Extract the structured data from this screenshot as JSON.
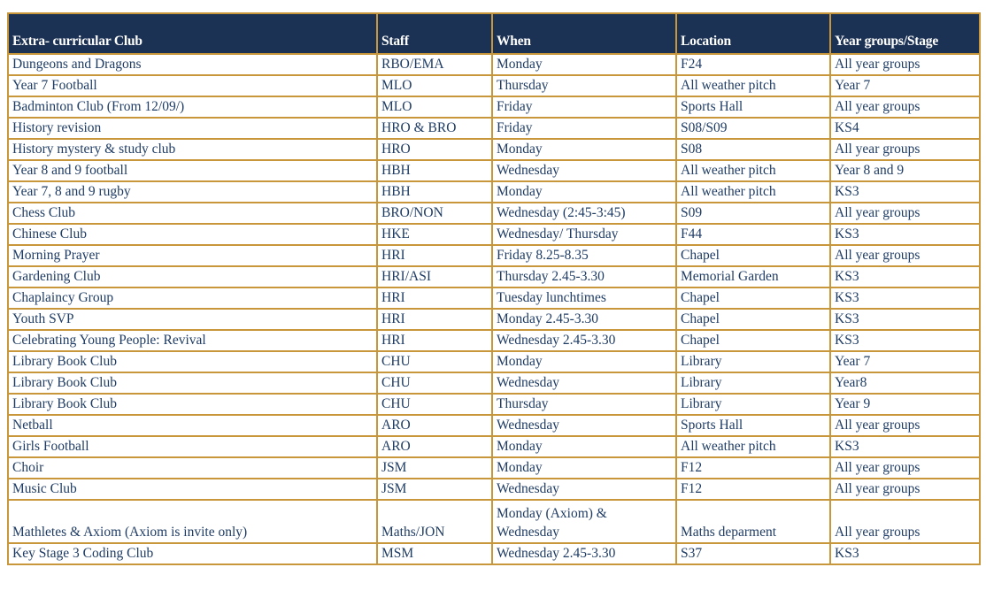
{
  "colors": {
    "page_background": "#ffffff",
    "header_background": "#1c3254",
    "header_text": "#ffffff",
    "body_text": "#1f3c64",
    "grid_border": "#c9973b"
  },
  "table": {
    "headers": [
      "Extra- curricular Club",
      "Staff",
      "When",
      "Location",
      "Year groups/Stage"
    ],
    "rows": [
      [
        "Dungeons and Dragons",
        "RBO/EMA",
        "Monday",
        "F24",
        "All year groups"
      ],
      [
        "Year 7 Football",
        "MLO",
        "Thursday",
        "All weather pitch",
        "Year 7"
      ],
      [
        "Badminton Club (From 12/09/)",
        "MLO",
        "Friday",
        "Sports Hall",
        "All year groups"
      ],
      [
        "History revision",
        "HRO & BRO",
        "Friday",
        "S08/S09",
        "KS4"
      ],
      [
        "History mystery & study club",
        "HRO",
        "Monday",
        "S08",
        "All year groups"
      ],
      [
        "Year 8 and 9 football",
        "HBH",
        "Wednesday",
        "All weather pitch",
        "Year 8 and 9"
      ],
      [
        "Year 7, 8 and 9 rugby",
        "HBH",
        "Monday",
        "All weather pitch",
        "KS3"
      ],
      [
        "Chess Club",
        "BRO/NON",
        "Wednesday (2:45-3:45)",
        "S09",
        "All year groups"
      ],
      [
        "Chinese Club",
        "HKE",
        "Wednesday/ Thursday",
        "F44",
        "KS3"
      ],
      [
        "Morning Prayer",
        "HRI",
        "Friday 8.25-8.35",
        "Chapel",
        "All year groups"
      ],
      [
        "Gardening Club",
        "HRI/ASI",
        "Thursday 2.45-3.30",
        "Memorial Garden",
        "KS3"
      ],
      [
        "Chaplaincy Group",
        "HRI",
        "Tuesday lunchtimes",
        "Chapel",
        "KS3"
      ],
      [
        "Youth SVP",
        "HRI",
        "Monday 2.45-3.30",
        "Chapel",
        "KS3"
      ],
      [
        "Celebrating Young People: Revival",
        "HRI",
        "Wednesday 2.45-3.30",
        "Chapel",
        "KS3"
      ],
      [
        "Library Book Club",
        "CHU",
        "Monday",
        "Library",
        "Year 7"
      ],
      [
        "Library Book Club",
        "CHU",
        "Wednesday",
        "Library",
        "Year8"
      ],
      [
        "Library Book Club",
        "CHU",
        "Thursday",
        "Library",
        "Year 9"
      ],
      [
        "Netball",
        "ARO",
        "Wednesday",
        "Sports Hall",
        "All year groups"
      ],
      [
        "Girls Football",
        "ARO",
        "Monday",
        "All weather pitch",
        "KS3"
      ],
      [
        "Choir",
        "JSM",
        "Monday",
        "F12",
        "All year groups"
      ],
      [
        "Music Club",
        "JSM",
        "Wednesday",
        "F12",
        "All year groups"
      ],
      [
        "Mathletes & Axiom (Axiom is invite only)",
        "Maths/JON",
        "Monday (Axiom) &\nWednesday",
        "Maths deparment",
        "All year groups"
      ],
      [
        "Key Stage 3 Coding Club",
        "MSM",
        "Wednesday 2.45-3.30",
        "S37",
        "KS3"
      ]
    ]
  }
}
